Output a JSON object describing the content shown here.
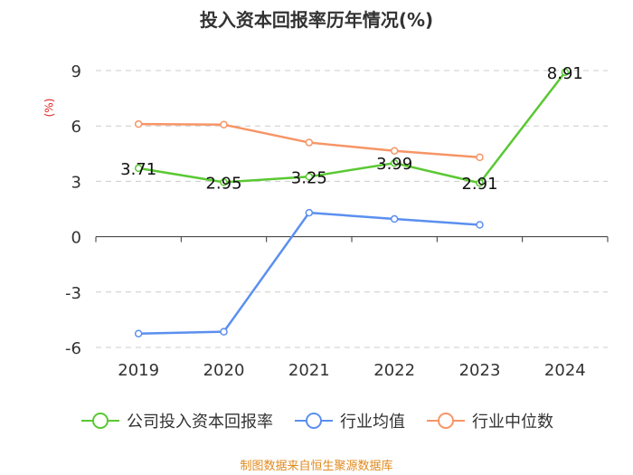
{
  "chart_data": {
    "type": "line",
    "title": "投入资本回报率历年情况(%)",
    "ylabel": "(%)",
    "xlabel": "",
    "categories": [
      "2019",
      "2020",
      "2021",
      "2022",
      "2023",
      "2024"
    ],
    "yticks": [
      9,
      6,
      3,
      0,
      -3,
      -6
    ],
    "ylim": [
      -6,
      9
    ],
    "grid": true,
    "legend_position": "bottom",
    "series": [
      {
        "name": "公司投入资本回报率",
        "color": "#5ac832",
        "values": [
          3.71,
          2.95,
          3.25,
          3.99,
          2.91,
          8.91
        ],
        "labels": [
          "3.71",
          "2.95",
          "3.25",
          "3.99",
          "2.91",
          "8.91"
        ]
      },
      {
        "name": "行业均值",
        "color": "#5b8ff0",
        "values": [
          -5.25,
          -5.15,
          1.3,
          0.96,
          0.64,
          null
        ]
      },
      {
        "name": "行业中位数",
        "color": "#f79566",
        "values": [
          6.1,
          6.07,
          5.1,
          4.65,
          4.3,
          null
        ]
      }
    ]
  },
  "source": "制图数据来自恒生聚源数据库"
}
